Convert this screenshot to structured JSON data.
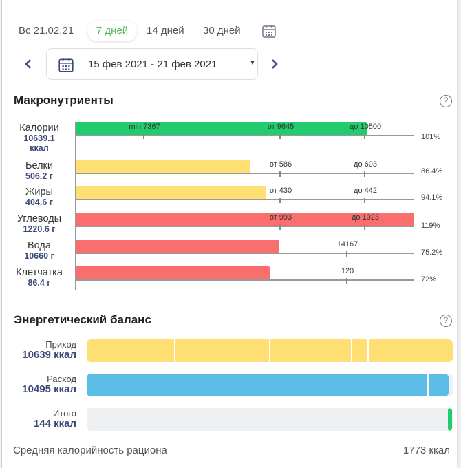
{
  "header": {
    "date": "Вс 21.02.21",
    "periods": [
      "7 дней",
      "14 дней",
      "30 дней"
    ],
    "active_period": "7 дней",
    "range": "15 фев 2021 - 21 фев 2021"
  },
  "macros": {
    "title": "Макронутриенты",
    "help": "?",
    "rows": [
      {
        "name": "Калории",
        "value": "10639.1",
        "unit": "ккал",
        "color": "#22cc6e",
        "ticks": [
          "min 7367",
          "от 9645",
          "до 10500"
        ],
        "percent": "101%",
        "fill_pct": 101
      },
      {
        "name": "Белки",
        "value": "506.2 г",
        "color": "#fddf74",
        "ticks": [
          "от 586",
          "до 603"
        ],
        "percent": "86.4%",
        "fill_pct": 86.4
      },
      {
        "name": "Жиры",
        "value": "404.6 г",
        "color": "#fddf74",
        "ticks": [
          "от 430",
          "до 442"
        ],
        "percent": "94.1%",
        "fill_pct": 94.1
      },
      {
        "name": "Углеводы",
        "value": "1220.6 г",
        "color": "#fa6e6e",
        "ticks": [
          "от 993",
          "до 1023"
        ],
        "percent": "119%",
        "fill_pct": 119
      },
      {
        "name": "Вода",
        "value": "10660 г",
        "color": "#fa6e6e",
        "ticks": [
          "14167"
        ],
        "percent": "75.2%",
        "fill_pct": 75.2
      },
      {
        "name": "Клетчатка",
        "value": "86.4 г",
        "color": "#fa6e6e",
        "ticks": [
          "120"
        ],
        "percent": "72%",
        "fill_pct": 72
      }
    ]
  },
  "energy": {
    "title": "Энергетический баланс",
    "help": "?",
    "rows": [
      {
        "name": "Приход",
        "value": "10639 ккал",
        "color": "#fddf74"
      },
      {
        "name": "Расход",
        "value": "10495 ккал",
        "color": "#5bbce6"
      },
      {
        "name": "Итого",
        "value": "144 ккал",
        "color": "#22cc6e"
      }
    ],
    "avg_label": "Средняя калорийность рациона",
    "avg_value": "1773 ккал"
  }
}
